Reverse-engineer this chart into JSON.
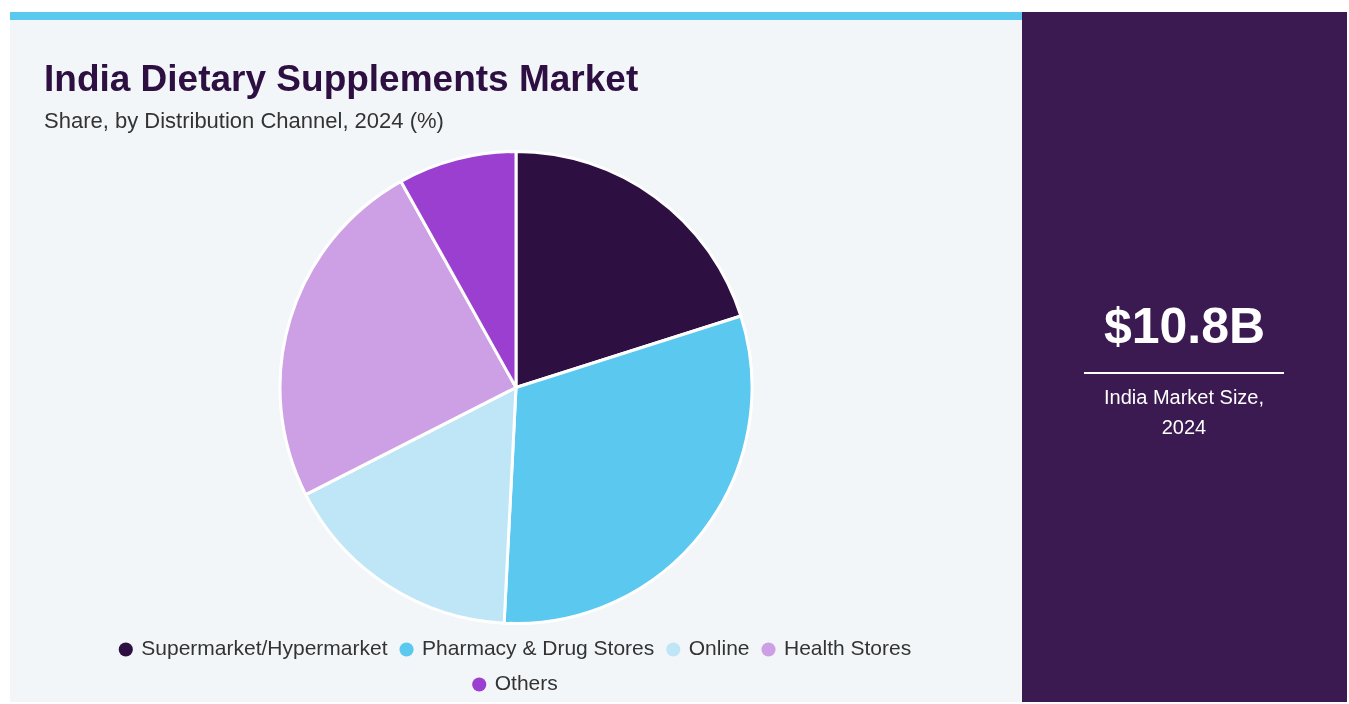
{
  "chart_data": {
    "type": "pie",
    "title": "India Dietary Supplements Market",
    "subtitle": "Share, by Distribution Channel, 2024 (%)",
    "categories": [
      "Supermarket/Hypermarket",
      "Pharmacy & Drug Stores",
      "Online",
      "Health Stores",
      "Others"
    ],
    "values": [
      20.1,
      30.7,
      16.7,
      24.4,
      8.1
    ],
    "colors": [
      "#2d0f41",
      "#5bc8f0",
      "#bfe6f7",
      "#cda0e6",
      "#9b3fd1"
    ],
    "legend": "bottom",
    "annotations": [
      "$10.8B",
      "India Market Size, 2024"
    ]
  }
}
